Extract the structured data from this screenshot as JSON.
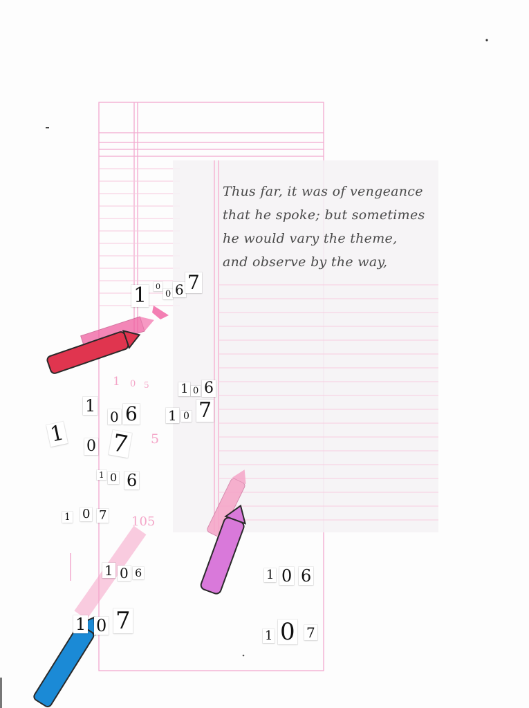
{
  "note": {
    "lines": [
      "Thus far, it was of vengeance",
      "that he spoke; but sometimes",
      "he would vary the theme,",
      "and observe by the way,"
    ]
  },
  "cutouts": {
    "c1": [
      "1",
      "0",
      "0",
      "6",
      "7"
    ],
    "c2": [
      "1",
      "0",
      "6"
    ],
    "c3": [
      "1",
      "0",
      "7"
    ],
    "c4": [
      "1",
      "0",
      "6"
    ],
    "c5": [
      "1",
      "0",
      "7"
    ],
    "c6": [
      "1",
      "0",
      "6"
    ],
    "c7": [
      "1",
      "0",
      "7"
    ],
    "c8": [
      "1",
      "0",
      "6"
    ],
    "c9": [
      "1",
      "0",
      "7"
    ],
    "c10": [
      "1",
      "0",
      "6"
    ],
    "c11": [
      "1",
      "0",
      "7"
    ]
  },
  "faded_digits": {
    "f1": [
      "1",
      "0",
      "5"
    ],
    "f2": "5",
    "f3": "105"
  },
  "colors": {
    "ruled_pink": "#f2a9cf",
    "crayon_red": "#e0354f",
    "crayon_pink": "#f05fa0",
    "crayon_light_pink": "#f5a3c7",
    "crayon_violet": "#d979da",
    "crayon_blue": "#1b8ad6",
    "ink": "#4a4a4a"
  },
  "icons": [
    "red-crayon-icon",
    "pink-crayon-icon",
    "light-pink-crayon-icon",
    "violet-crayon-icon",
    "blue-crayon-icon"
  ]
}
